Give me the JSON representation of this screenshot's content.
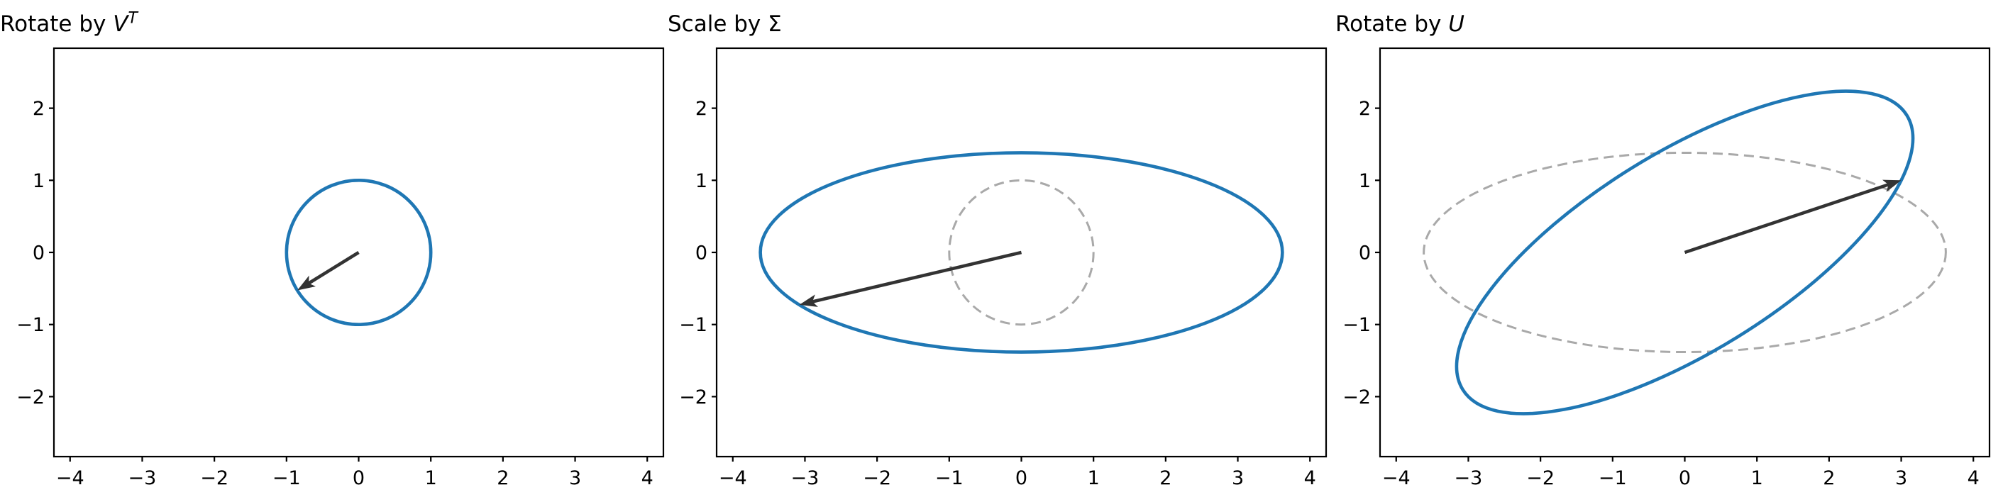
{
  "figure": {
    "background": "#ffffff",
    "colors": {
      "ellipse_blue": "#1f77b4",
      "dashed_gray": "#a9a9a9",
      "arrow_dark": "#333333",
      "axis_black": "#000000"
    }
  },
  "chart_data": [
    {
      "type": "line",
      "title": "Rotate by V^T",
      "title_prefix": "Rotate by ",
      "title_var": "V",
      "title_sup": "T",
      "xlim": [
        -4.224,
        4.224
      ],
      "ylim": [
        -2.832,
        2.832
      ],
      "xticks": [
        -4,
        -3,
        -2,
        -1,
        0,
        1,
        2,
        3,
        4
      ],
      "yticks": [
        -2,
        -1,
        0,
        1,
        2
      ],
      "grid": false,
      "ellipses": [
        {
          "rx": 1.0,
          "ry": 1.0,
          "angle_deg": 0,
          "style": "solid_blue"
        }
      ],
      "vector": {
        "from": [
          0,
          0
        ],
        "to": [
          -0.8507,
          -0.5257
        ]
      }
    },
    {
      "type": "line",
      "title": "Scale by Σ",
      "title_prefix": "Scale by ",
      "title_var": "Σ",
      "title_sup": "",
      "xlim": [
        -4.224,
        4.224
      ],
      "ylim": [
        -2.832,
        2.832
      ],
      "xticks": [
        -4,
        -3,
        -2,
        -1,
        0,
        1,
        2,
        3,
        4
      ],
      "yticks": [
        -2,
        -1,
        0,
        1,
        2
      ],
      "grid": false,
      "ellipses": [
        {
          "rx": 1.0,
          "ry": 1.0,
          "angle_deg": 0,
          "style": "dashed_gray"
        },
        {
          "rx": 3.618,
          "ry": 1.382,
          "angle_deg": 0,
          "style": "solid_blue"
        }
      ],
      "vector": {
        "from": [
          0,
          0
        ],
        "to": [
          -3.0777,
          -0.7265
        ]
      }
    },
    {
      "type": "line",
      "title": "Rotate by U",
      "title_prefix": "Rotate by ",
      "title_var": "U",
      "title_sup": "",
      "xlim": [
        -4.224,
        4.224
      ],
      "ylim": [
        -2.832,
        2.832
      ],
      "xticks": [
        -4,
        -3,
        -2,
        -1,
        0,
        1,
        2,
        3,
        4
      ],
      "yticks": [
        -2,
        -1,
        0,
        1,
        2
      ],
      "grid": false,
      "ellipses": [
        {
          "rx": 3.618,
          "ry": 1.382,
          "angle_deg": 0,
          "style": "dashed_gray"
        },
        {
          "rx": 3.618,
          "ry": 1.382,
          "angle_deg": 31.72,
          "style": "solid_blue"
        }
      ],
      "vector": {
        "from": [
          0,
          0
        ],
        "to": [
          3.0,
          1.0
        ]
      }
    }
  ]
}
